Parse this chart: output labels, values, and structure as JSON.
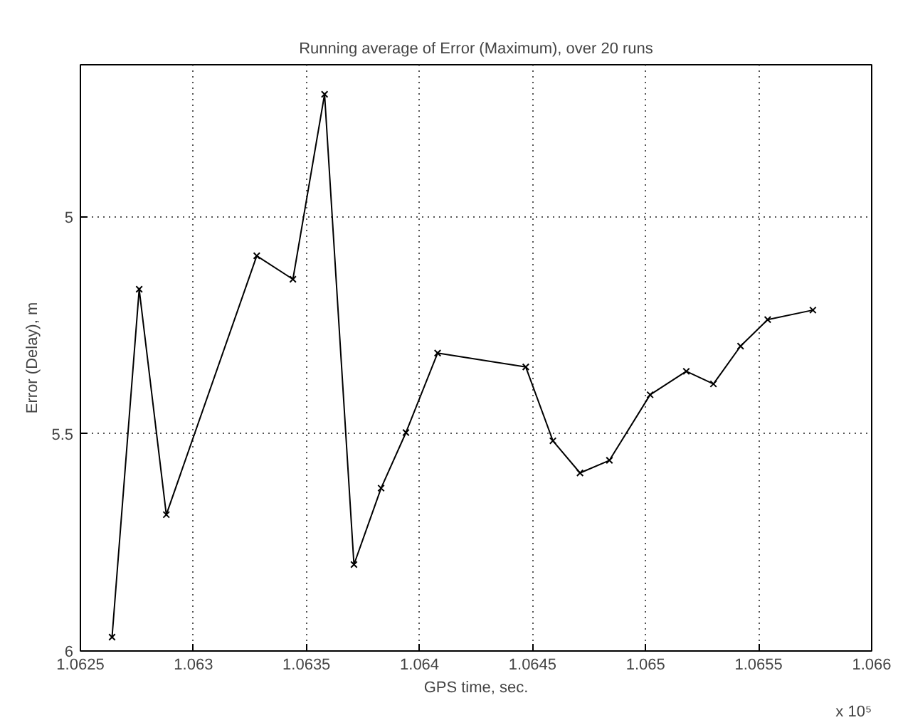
{
  "chart_data": {
    "type": "line",
    "title": "Running average of Error (Maximum), over 20 runs",
    "xlabel": "GPS time, sec.",
    "ylabel": "Error (Delay), m",
    "annotations": [
      "x 10⁵"
    ],
    "x": [
      1.06264,
      1.06276,
      1.06288,
      1.06328,
      1.06344,
      1.06358,
      1.06371,
      1.06383,
      1.06394,
      1.06408,
      1.06447,
      1.06459,
      1.06471,
      1.06484,
      1.06502,
      1.06518,
      1.0653,
      1.06542,
      1.06554,
      1.06574
    ],
    "series": [
      {
        "color": "#000000",
        "values": [
          5.968,
          5.167,
          5.686,
          5.09,
          5.144,
          4.718,
          5.801,
          5.625,
          5.497,
          5.314,
          5.346,
          5.516,
          5.59,
          5.561,
          5.41,
          5.356,
          5.385,
          5.298,
          5.237,
          5.215
        ]
      }
    ],
    "xlim": [
      1.0625,
      1.066
    ],
    "xticks": [
      1.0625,
      1.063,
      1.0635,
      1.064,
      1.0645,
      1.065,
      1.0655,
      1.066
    ],
    "ylim": [
      6,
      4.65
    ],
    "yticks": [
      5,
      5.5,
      6
    ],
    "grid": true,
    "marker": "cross",
    "line_style": "solid"
  }
}
